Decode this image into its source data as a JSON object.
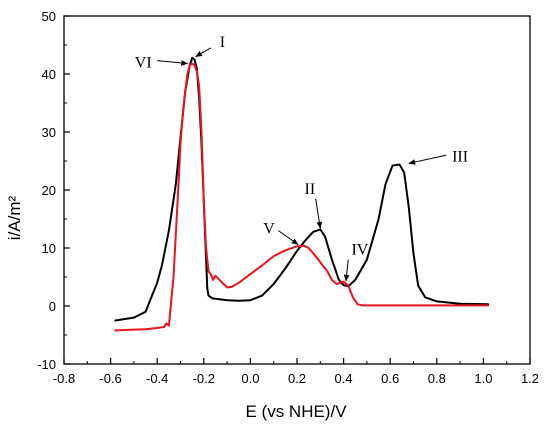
{
  "chart_data": {
    "type": "line",
    "title": "",
    "xlabel": "E (vs NHE)/V",
    "ylabel": "i/A/m²",
    "xlim": [
      -0.8,
      1.2
    ],
    "ylim": [
      -10,
      50
    ],
    "xticks": [
      -0.8,
      -0.6,
      -0.4,
      -0.2,
      0.0,
      0.2,
      0.4,
      0.6,
      0.8,
      1.0,
      1.2
    ],
    "xtick_labels": [
      "-0.8",
      "-0.6",
      "-0.4",
      "-0.2",
      "0.0",
      "0.2",
      "0.4",
      "0.6",
      "0.8",
      "1.0",
      "1.2"
    ],
    "yticks": [
      -10,
      0,
      10,
      20,
      30,
      40,
      50
    ],
    "ytick_labels": [
      "-10",
      "0",
      "10",
      "20",
      "30",
      "40",
      "50"
    ],
    "grid": false,
    "legend": "none",
    "series": [
      {
        "color": "#000000",
        "x": [
          -0.58,
          -0.5,
          -0.45,
          -0.42,
          -0.4,
          -0.38,
          -0.35,
          -0.32,
          -0.3,
          -0.28,
          -0.26,
          -0.25,
          -0.24,
          -0.23,
          -0.22,
          -0.21,
          -0.2,
          -0.19,
          -0.185,
          -0.18,
          -0.17,
          -0.16,
          -0.14,
          -0.1,
          -0.05,
          0.0,
          0.05,
          0.1,
          0.15,
          0.2,
          0.24,
          0.27,
          0.3,
          0.32,
          0.35,
          0.38,
          0.4,
          0.42,
          0.45,
          0.5,
          0.55,
          0.58,
          0.61,
          0.64,
          0.66,
          0.68,
          0.7,
          0.72,
          0.75,
          0.8,
          0.9,
          1.02
        ],
        "y": [
          -2.5,
          -2.0,
          -1.0,
          2.0,
          4.0,
          7.0,
          13.0,
          21.0,
          29.0,
          37.0,
          41.5,
          42.8,
          42.5,
          41.0,
          36.0,
          28.0,
          18.0,
          8.0,
          3.0,
          1.8,
          1.5,
          1.3,
          1.2,
          1.0,
          0.9,
          1.0,
          1.8,
          3.8,
          6.5,
          9.5,
          11.5,
          12.8,
          13.2,
          12.0,
          8.0,
          4.5,
          3.6,
          3.4,
          4.5,
          8.0,
          15.0,
          21.0,
          24.2,
          24.4,
          23.0,
          17.0,
          9.0,
          3.5,
          1.5,
          0.8,
          0.4,
          0.3
        ]
      },
      {
        "color": "#e8141e",
        "x": [
          -0.58,
          -0.45,
          -0.4,
          -0.37,
          -0.36,
          -0.35,
          -0.33,
          -0.31,
          -0.3,
          -0.29,
          -0.28,
          -0.27,
          -0.26,
          -0.25,
          -0.24,
          -0.23,
          -0.22,
          -0.21,
          -0.2,
          -0.19,
          -0.18,
          -0.17,
          -0.16,
          -0.15,
          -0.14,
          -0.12,
          -0.1,
          -0.08,
          -0.05,
          0.0,
          0.05,
          0.1,
          0.15,
          0.2,
          0.23,
          0.25,
          0.28,
          0.31,
          0.33,
          0.35,
          0.37,
          0.38,
          0.4,
          0.42,
          0.44,
          0.46,
          0.48,
          0.5,
          0.6,
          0.7,
          0.8,
          0.9,
          1.02
        ],
        "y": [
          -4.2,
          -4.0,
          -3.8,
          -3.6,
          -3.0,
          -3.4,
          5.0,
          20.0,
          28.0,
          33.0,
          37.0,
          40.0,
          41.5,
          41.8,
          41.5,
          40.5,
          38.0,
          30.0,
          18.0,
          10.0,
          6.0,
          5.5,
          4.5,
          5.2,
          4.8,
          4.0,
          3.2,
          3.3,
          4.0,
          5.5,
          7.0,
          8.6,
          9.6,
          10.3,
          10.4,
          10.0,
          8.6,
          7.0,
          6.0,
          4.5,
          3.8,
          3.9,
          4.2,
          3.5,
          1.5,
          0.3,
          0.1,
          0.1,
          0.1,
          0.1,
          0.1,
          0.1,
          0.1
        ]
      }
    ],
    "annotations": [
      {
        "text": "I",
        "label_at": [
          -0.12,
          45.5
        ],
        "arrow_from": [
          -0.17,
          44.5
        ],
        "arrow_to": [
          -0.235,
          43.0
        ]
      },
      {
        "text": "VI",
        "label_at": [
          -0.46,
          42.0
        ],
        "arrow_from": [
          -0.4,
          42.3
        ],
        "arrow_to": [
          -0.27,
          41.8
        ]
      },
      {
        "text": "II",
        "label_at": [
          0.255,
          20.2
        ],
        "arrow_from": [
          0.28,
          18.5
        ],
        "arrow_to": [
          0.3,
          13.4
        ]
      },
      {
        "text": "III",
        "label_at": [
          0.9,
          25.8
        ],
        "arrow_from": [
          0.84,
          26.0
        ],
        "arrow_to": [
          0.68,
          24.6
        ]
      },
      {
        "text": "V",
        "label_at": [
          0.08,
          13.4
        ],
        "arrow_from": [
          0.12,
          13.0
        ],
        "arrow_to": [
          0.205,
          10.6
        ]
      },
      {
        "text": "IV",
        "label_at": [
          0.47,
          9.7
        ],
        "arrow_from": [
          0.42,
          8.0
        ],
        "arrow_to": [
          0.41,
          4.3
        ]
      }
    ]
  }
}
